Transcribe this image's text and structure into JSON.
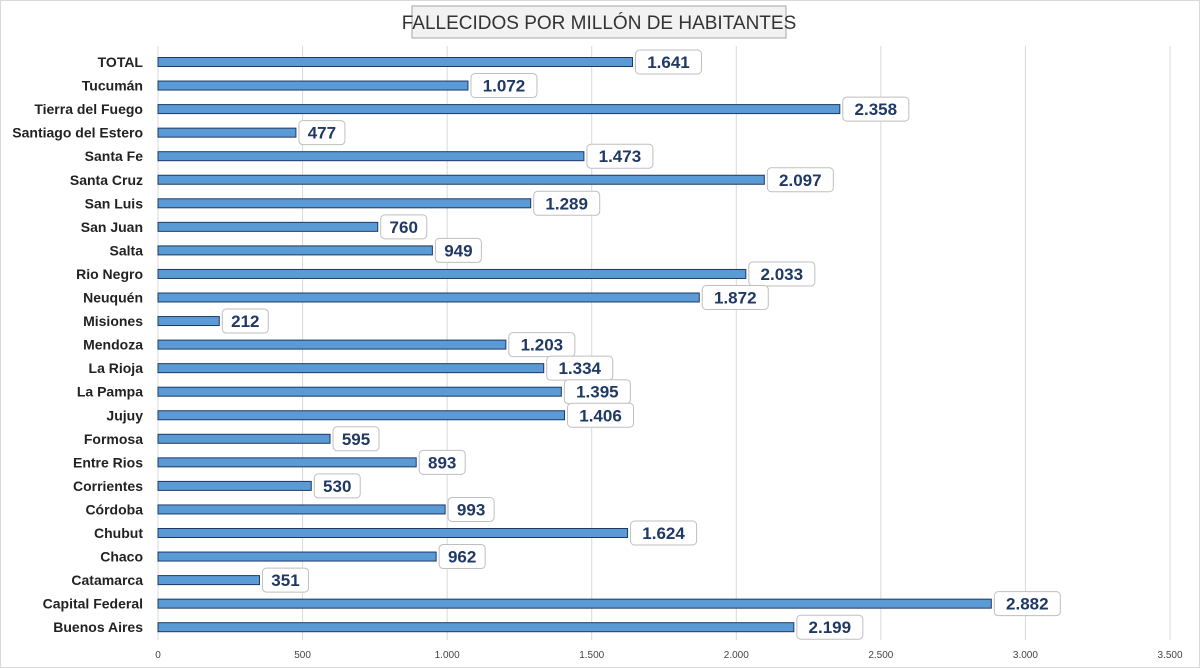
{
  "chart_data": {
    "type": "bar",
    "orientation": "horizontal",
    "title": "FALLECIDOS POR MILLÓN DE HABITANTES",
    "xlabel": "",
    "ylabel": "",
    "xlim": [
      0,
      3500
    ],
    "x_ticks": [
      "0",
      "500",
      "1.000",
      "1.500",
      "2.000",
      "2.500",
      "3.000",
      "3.500"
    ],
    "x_tick_values": [
      0,
      500,
      1000,
      1500,
      2000,
      2500,
      3000,
      3500
    ],
    "grid": true,
    "legend": "none",
    "categories": [
      "TOTAL",
      "Tucumán",
      "Tierra del Fuego",
      "Santiago del Estero",
      "Santa Fe",
      "Santa Cruz",
      "San Luis",
      "San Juan",
      "Salta",
      "Rio Negro",
      "Neuquén",
      "Misiones",
      "Mendoza",
      "La Rioja",
      "La Pampa",
      "Jujuy",
      "Formosa",
      "Entre Rios",
      "Corrientes",
      "Córdoba",
      "Chubut",
      "Chaco",
      "Catamarca",
      "Capital Federal",
      "Buenos Aires"
    ],
    "values": [
      1641,
      1072,
      2358,
      477,
      1473,
      2097,
      1289,
      760,
      949,
      2033,
      1872,
      212,
      1203,
      1334,
      1395,
      1406,
      595,
      893,
      530,
      993,
      1624,
      962,
      351,
      2882,
      2199
    ],
    "data_labels": [
      "1.641",
      "1.072",
      "2.358",
      "477",
      "1.473",
      "2.097",
      "1.289",
      "760",
      "949",
      "2.033",
      "1.872",
      "212",
      "1.203",
      "1.334",
      "1.395",
      "1.406",
      "595",
      "893",
      "530",
      "993",
      "1.624",
      "962",
      "351",
      "2.882",
      "2.199"
    ],
    "colors": {
      "bar_fill": "#5b9bd5",
      "bar_edge": "#1f3864",
      "label_text": "#1f3864",
      "grid": "#d9d9d9"
    }
  }
}
